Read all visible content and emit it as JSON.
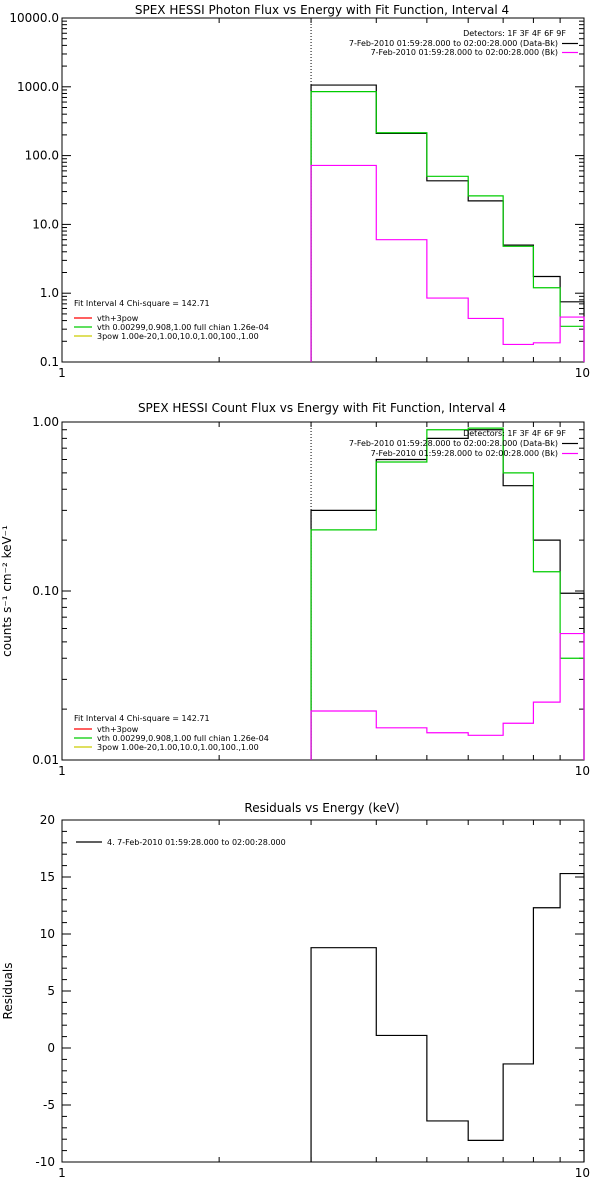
{
  "chart_data": [
    {
      "type": "line",
      "step": true,
      "title": "SPEX HESSI Photon Flux vs Energy with Fit Function, Interval 4",
      "xlabel": "",
      "ylabel": "",
      "xscale": "log",
      "yscale": "log",
      "xlim": [
        1,
        10
      ],
      "ylim": [
        0.1,
        10000
      ],
      "x_tick_labels": [
        "1",
        "10"
      ],
      "y_tick_labels": [
        "0.1",
        "1.0",
        "10.0",
        "100.0",
        "1000.0",
        "10000.0"
      ],
      "marker_x": 3.0,
      "detectors": "Detectors: 1F 3F 4F 6F 9F",
      "legend_top": [
        {
          "label": "7-Feb-2010 01:59:28.000 to 02:00:28.000 (Data-Bk)",
          "color": "#000000"
        },
        {
          "label": "7-Feb-2010 01:59:28.000 to 02:00:28.000 (Bk)",
          "color": "#ff00ff"
        }
      ],
      "fit_header": "Fit Interval 4    Chi-square = 142.71",
      "legend_bottom": [
        {
          "label": "vth+3pow",
          "color": "#ff0000"
        },
        {
          "label": "vth 0.00299,0.908,1.00  full chian 1.26e-04",
          "color": "#00cc00"
        },
        {
          "label": "3pow 1.00e-20,1.00,10.0,1.00,100.,1.00",
          "color": "#cccc00"
        }
      ],
      "bin_edges": [
        3,
        4,
        5,
        6,
        7,
        8,
        9,
        10
      ],
      "series": [
        {
          "color": "#000000",
          "values": [
            1060,
            210,
            43,
            22,
            5.0,
            1.75,
            0.75
          ]
        },
        {
          "color": "#00cc00",
          "values": [
            850,
            215,
            50,
            26,
            4.8,
            1.2,
            0.33
          ]
        },
        {
          "color": "#ff00ff",
          "values": [
            72,
            6.0,
            0.85,
            0.43,
            0.18,
            0.19,
            0.45
          ]
        }
      ]
    },
    {
      "type": "line",
      "step": true,
      "title": "SPEX HESSI Count Flux vs Energy with Fit Function, Interval 4",
      "xlabel": "",
      "ylabel": "counts s⁻¹ cm⁻² keV⁻¹",
      "xscale": "log",
      "yscale": "log",
      "xlim": [
        1,
        10
      ],
      "ylim": [
        0.01,
        1.0
      ],
      "x_tick_labels": [
        "1",
        "10"
      ],
      "y_tick_labels": [
        "0.01",
        "0.10",
        "1.00"
      ],
      "marker_x": 3.0,
      "detectors": "Detectors: 1F 3F 4F 6F 9F",
      "legend_top": [
        {
          "label": "7-Feb-2010 01:59:28.000 to 02:00:28.000 (Data-Bk)",
          "color": "#000000"
        },
        {
          "label": "7-Feb-2010 01:59:28.000 to 02:00:28.000 (Bk)",
          "color": "#ff00ff"
        }
      ],
      "fit_header": "Fit Interval 4    Chi-square = 142.71",
      "legend_bottom": [
        {
          "label": "vth+3pow",
          "color": "#ff0000"
        },
        {
          "label": "vth 0.00299,0.908,1.00  full chian 1.26e-04",
          "color": "#00cc00"
        },
        {
          "label": "3pow 1.00e-20,1.00,10.0,1.00,100.,1.00",
          "color": "#cccc00"
        }
      ],
      "bin_edges": [
        3,
        4,
        5,
        6,
        7,
        8,
        9,
        10
      ],
      "series": [
        {
          "color": "#000000",
          "values": [
            0.3,
            0.6,
            0.8,
            0.9,
            0.42,
            0.2,
            0.097
          ]
        },
        {
          "color": "#00cc00",
          "values": [
            0.23,
            0.58,
            0.9,
            0.92,
            0.5,
            0.13,
            0.04
          ]
        },
        {
          "color": "#ff00ff",
          "values": [
            0.0195,
            0.0155,
            0.0145,
            0.014,
            0.0165,
            0.022,
            0.056
          ]
        }
      ]
    },
    {
      "type": "line",
      "step": true,
      "title": "Residuals vs Energy (keV)",
      "xlabel": "",
      "ylabel": "Residuals",
      "xscale": "log",
      "yscale": "linear",
      "xlim": [
        1,
        10
      ],
      "ylim": [
        -10,
        20
      ],
      "x_tick_labels": [
        "1",
        "10"
      ],
      "y_tick_values": [
        -10,
        -5,
        0,
        5,
        10,
        15,
        20
      ],
      "y_tick_labels": [
        "-10",
        "-5",
        "0",
        "5",
        "10",
        "15",
        "20"
      ],
      "legend_top": [
        {
          "label": "4.  7-Feb-2010 01:59:28.000 to 02:00:28.000",
          "color": "#000000"
        }
      ],
      "bin_edges": [
        3,
        4,
        5,
        6,
        7,
        8,
        9,
        10
      ],
      "series": [
        {
          "color": "#000000",
          "values": [
            8.8,
            1.1,
            -6.4,
            -8.1,
            -1.4,
            12.3,
            15.3
          ]
        }
      ]
    }
  ]
}
